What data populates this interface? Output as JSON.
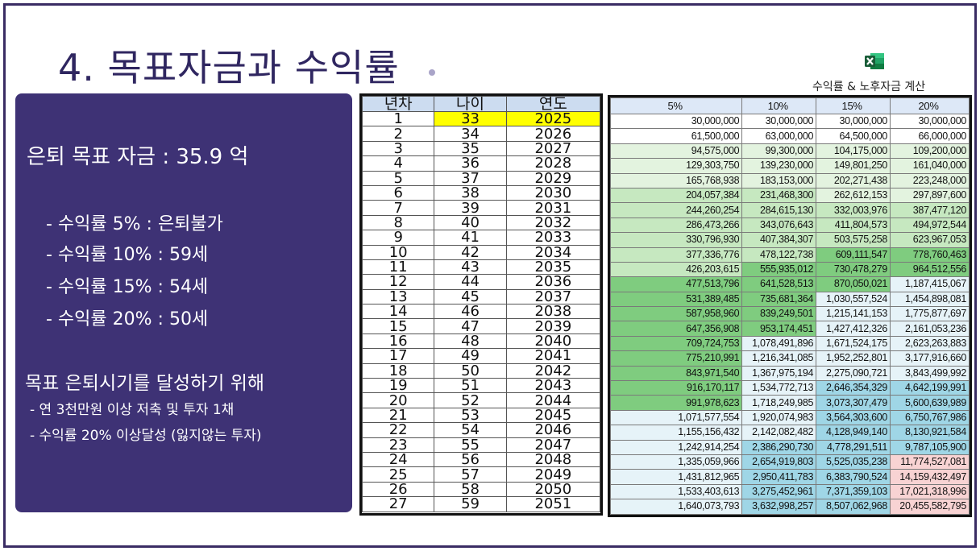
{
  "slide": {
    "title": "4. 목표자금과 수익률",
    "excel_label": "수익률 & 노후자금 계산",
    "excel_icon": "excel-file-icon"
  },
  "left_panel": {
    "goal": "은퇴 목표 자금 : 35.9 억",
    "rates": [
      "- 수익률 5% : 은퇴불가",
      "- 수익률 10% : 59세",
      "- 수익률 15% : 54세",
      "- 수익률 20% : 50세"
    ],
    "subtitle": "목표 은퇴시기를 달성하기 위해",
    "bullets": [
      "- 연 3천만원 이상 저축 및 투자 1채",
      "- 수익률 20% 이상달성 (잃지않는 투자)"
    ]
  },
  "age_table": {
    "headers": [
      "년차",
      "나이",
      "연도"
    ],
    "rows": [
      [
        "1",
        "33",
        "2025"
      ],
      [
        "2",
        "34",
        "2026"
      ],
      [
        "3",
        "35",
        "2027"
      ],
      [
        "4",
        "36",
        "2028"
      ],
      [
        "5",
        "37",
        "2029"
      ],
      [
        "6",
        "38",
        "2030"
      ],
      [
        "7",
        "39",
        "2031"
      ],
      [
        "8",
        "40",
        "2032"
      ],
      [
        "9",
        "41",
        "2033"
      ],
      [
        "10",
        "42",
        "2034"
      ],
      [
        "11",
        "43",
        "2035"
      ],
      [
        "12",
        "44",
        "2036"
      ],
      [
        "13",
        "45",
        "2037"
      ],
      [
        "14",
        "46",
        "2038"
      ],
      [
        "15",
        "47",
        "2039"
      ],
      [
        "16",
        "48",
        "2040"
      ],
      [
        "17",
        "49",
        "2041"
      ],
      [
        "18",
        "50",
        "2042"
      ],
      [
        "19",
        "51",
        "2043"
      ],
      [
        "20",
        "52",
        "2044"
      ],
      [
        "21",
        "53",
        "2045"
      ],
      [
        "22",
        "54",
        "2046"
      ],
      [
        "23",
        "55",
        "2047"
      ],
      [
        "24",
        "56",
        "2048"
      ],
      [
        "25",
        "57",
        "2049"
      ],
      [
        "26",
        "58",
        "2050"
      ],
      [
        "27",
        "59",
        "2051"
      ]
    ]
  },
  "return_table": {
    "headers": [
      "5%",
      "10%",
      "15%",
      "20%"
    ],
    "rows": [
      [
        "30,000,000",
        "30,000,000",
        "30,000,000",
        "30,000,000"
      ],
      [
        "61,500,000",
        "63,000,000",
        "64,500,000",
        "66,000,000"
      ],
      [
        "94,575,000",
        "99,300,000",
        "104,175,000",
        "109,200,000"
      ],
      [
        "129,303,750",
        "139,230,000",
        "149,801,250",
        "161,040,000"
      ],
      [
        "165,768,938",
        "183,153,000",
        "202,271,438",
        "223,248,000"
      ],
      [
        "204,057,384",
        "231,468,300",
        "262,612,153",
        "297,897,600"
      ],
      [
        "244,260,254",
        "284,615,130",
        "332,003,976",
        "387,477,120"
      ],
      [
        "286,473,266",
        "343,076,643",
        "411,804,573",
        "494,972,544"
      ],
      [
        "330,796,930",
        "407,384,307",
        "503,575,258",
        "623,967,053"
      ],
      [
        "377,336,776",
        "478,122,738",
        "609,111,547",
        "778,760,463"
      ],
      [
        "426,203,615",
        "555,935,012",
        "730,478,279",
        "964,512,556"
      ],
      [
        "477,513,796",
        "641,528,513",
        "870,050,021",
        "1,187,415,067"
      ],
      [
        "531,389,485",
        "735,681,364",
        "1,030,557,524",
        "1,454,898,081"
      ],
      [
        "587,958,960",
        "839,249,501",
        "1,215,141,153",
        "1,775,877,697"
      ],
      [
        "647,356,908",
        "953,174,451",
        "1,427,412,326",
        "2,161,053,236"
      ],
      [
        "709,724,753",
        "1,078,491,896",
        "1,671,524,175",
        "2,623,263,883"
      ],
      [
        "775,210,991",
        "1,216,341,085",
        "1,952,252,801",
        "3,177,916,660"
      ],
      [
        "843,971,540",
        "1,367,975,194",
        "2,275,090,721",
        "3,843,499,992"
      ],
      [
        "916,170,117",
        "1,534,772,713",
        "2,646,354,329",
        "4,642,199,991"
      ],
      [
        "991,978,623",
        "1,718,249,985",
        "3,073,307,479",
        "5,600,639,989"
      ],
      [
        "1,071,577,554",
        "1,920,074,983",
        "3,564,303,600",
        "6,750,767,986"
      ],
      [
        "1,155,156,432",
        "2,142,082,482",
        "4,128,949,140",
        "8,130,921,584"
      ],
      [
        "1,242,914,254",
        "2,386,290,730",
        "4,778,291,511",
        "9,787,105,900"
      ],
      [
        "1,335,059,966",
        "2,654,919,803",
        "5,525,035,238",
        "11,774,527,081"
      ],
      [
        "1,431,812,965",
        "2,950,411,783",
        "6,383,790,524",
        "14,159,432,497"
      ],
      [
        "1,533,403,613",
        "3,275,452,961",
        "7,371,359,103",
        "17,021,318,996"
      ],
      [
        "1,640,073,793",
        "3,632,998,257",
        "8,507,062,968",
        "20,455,582,795"
      ]
    ],
    "colors": {
      "white": "#ffffff",
      "light_green": "#e3f3df",
      "mid_green": "#c6e8c0",
      "green": "#7fcc7f",
      "light_blue": "#e6f3f8",
      "blue": "#9fd6e6",
      "pink": "#f8d3d3"
    }
  }
}
